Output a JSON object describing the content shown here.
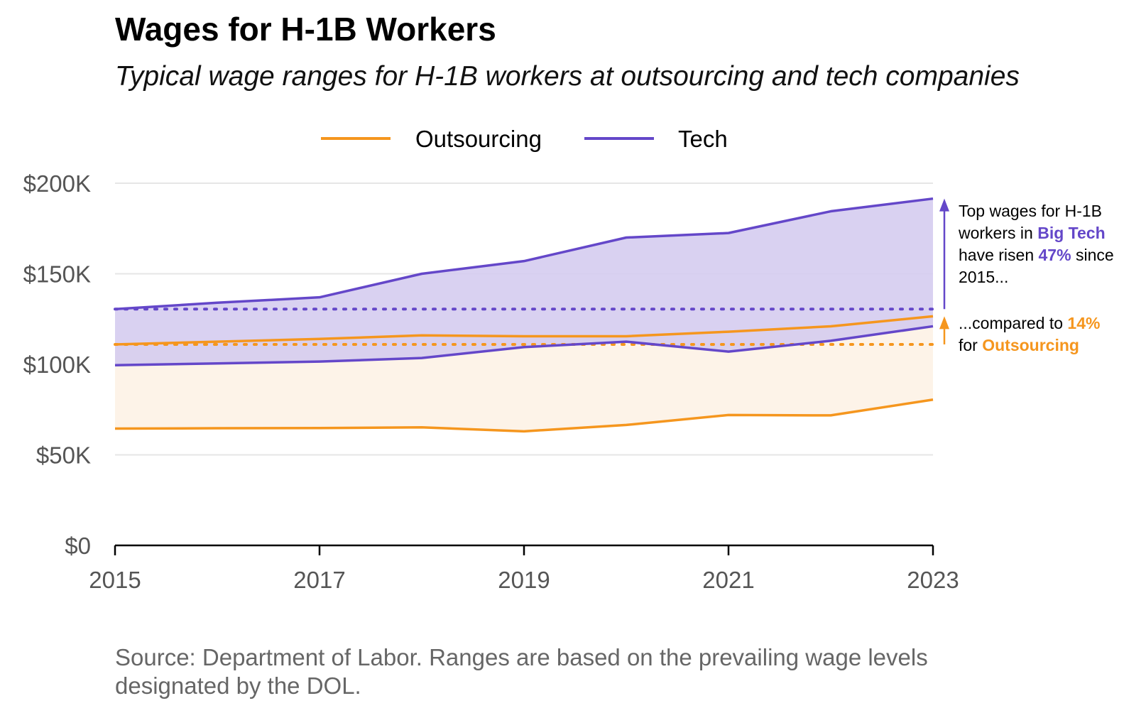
{
  "title": "Wages for H-1B Workers",
  "subtitle": "Typical wage ranges for H-1B workers at outsourcing and tech companies",
  "source": "Source: Department of Labor. Ranges are based on the prevailing wage levels designated by the DOL.",
  "colors": {
    "outsourcing": "#f5961e",
    "tech": "#6447c9",
    "outsourcing_fill": "#fdf3e8",
    "tech_fill": "#d2c9ee",
    "grid": "#e6e6e6",
    "axis_text": "#555555"
  },
  "annotations": {
    "tech": {
      "line1": "Top wages for H-1B",
      "line2_pre": "workers in ",
      "line2_em": "Big Tech",
      "line3_pre": "have risen ",
      "line3_em": "47%",
      "line3_post": " since",
      "line4": "2015..."
    },
    "outsourcing": {
      "line1_pre": "...compared to ",
      "line1_em": "14%",
      "line2_pre": "for ",
      "line2_em": "Outsourcing"
    }
  },
  "chart_data": {
    "type": "area",
    "title": "Wages for H-1B Workers",
    "subtitle": "Typical wage ranges for H-1B workers at outsourcing and tech companies",
    "xlabel": "",
    "ylabel": "",
    "x": [
      2015,
      2016,
      2017,
      2018,
      2019,
      2020,
      2021,
      2022,
      2023
    ],
    "xticks": [
      "2015",
      "2017",
      "2019",
      "2021",
      "2023"
    ],
    "xlim": [
      2015,
      2023
    ],
    "ylim": [
      0,
      200000
    ],
    "yticks": [
      "$0",
      "$50K",
      "$100K",
      "$150K",
      "$200K"
    ],
    "ytick_values": [
      0,
      50000,
      100000,
      150000,
      200000
    ],
    "grid": true,
    "legend": {
      "position": "top",
      "entries": [
        "Outsourcing",
        "Tech"
      ]
    },
    "series": [
      {
        "name": "Outsourcing",
        "upper": [
          111000,
          112500,
          114000,
          116000,
          115500,
          115500,
          118000,
          121000,
          126500
        ],
        "lower": [
          64500,
          64700,
          64800,
          65200,
          63000,
          66500,
          72000,
          71800,
          80500
        ],
        "reference_2015_top": 111000
      },
      {
        "name": "Tech",
        "upper": [
          130500,
          134000,
          137000,
          150000,
          157000,
          170000,
          172500,
          184500,
          191500
        ],
        "lower": [
          99500,
          100500,
          101500,
          103500,
          109500,
          112500,
          107000,
          113000,
          121000
        ],
        "reference_2015_top": 130500
      }
    ],
    "annotations": [
      "Top wages for H-1B workers in Big Tech have risen 47% since 2015...",
      "...compared to 14% for Outsourcing"
    ]
  }
}
